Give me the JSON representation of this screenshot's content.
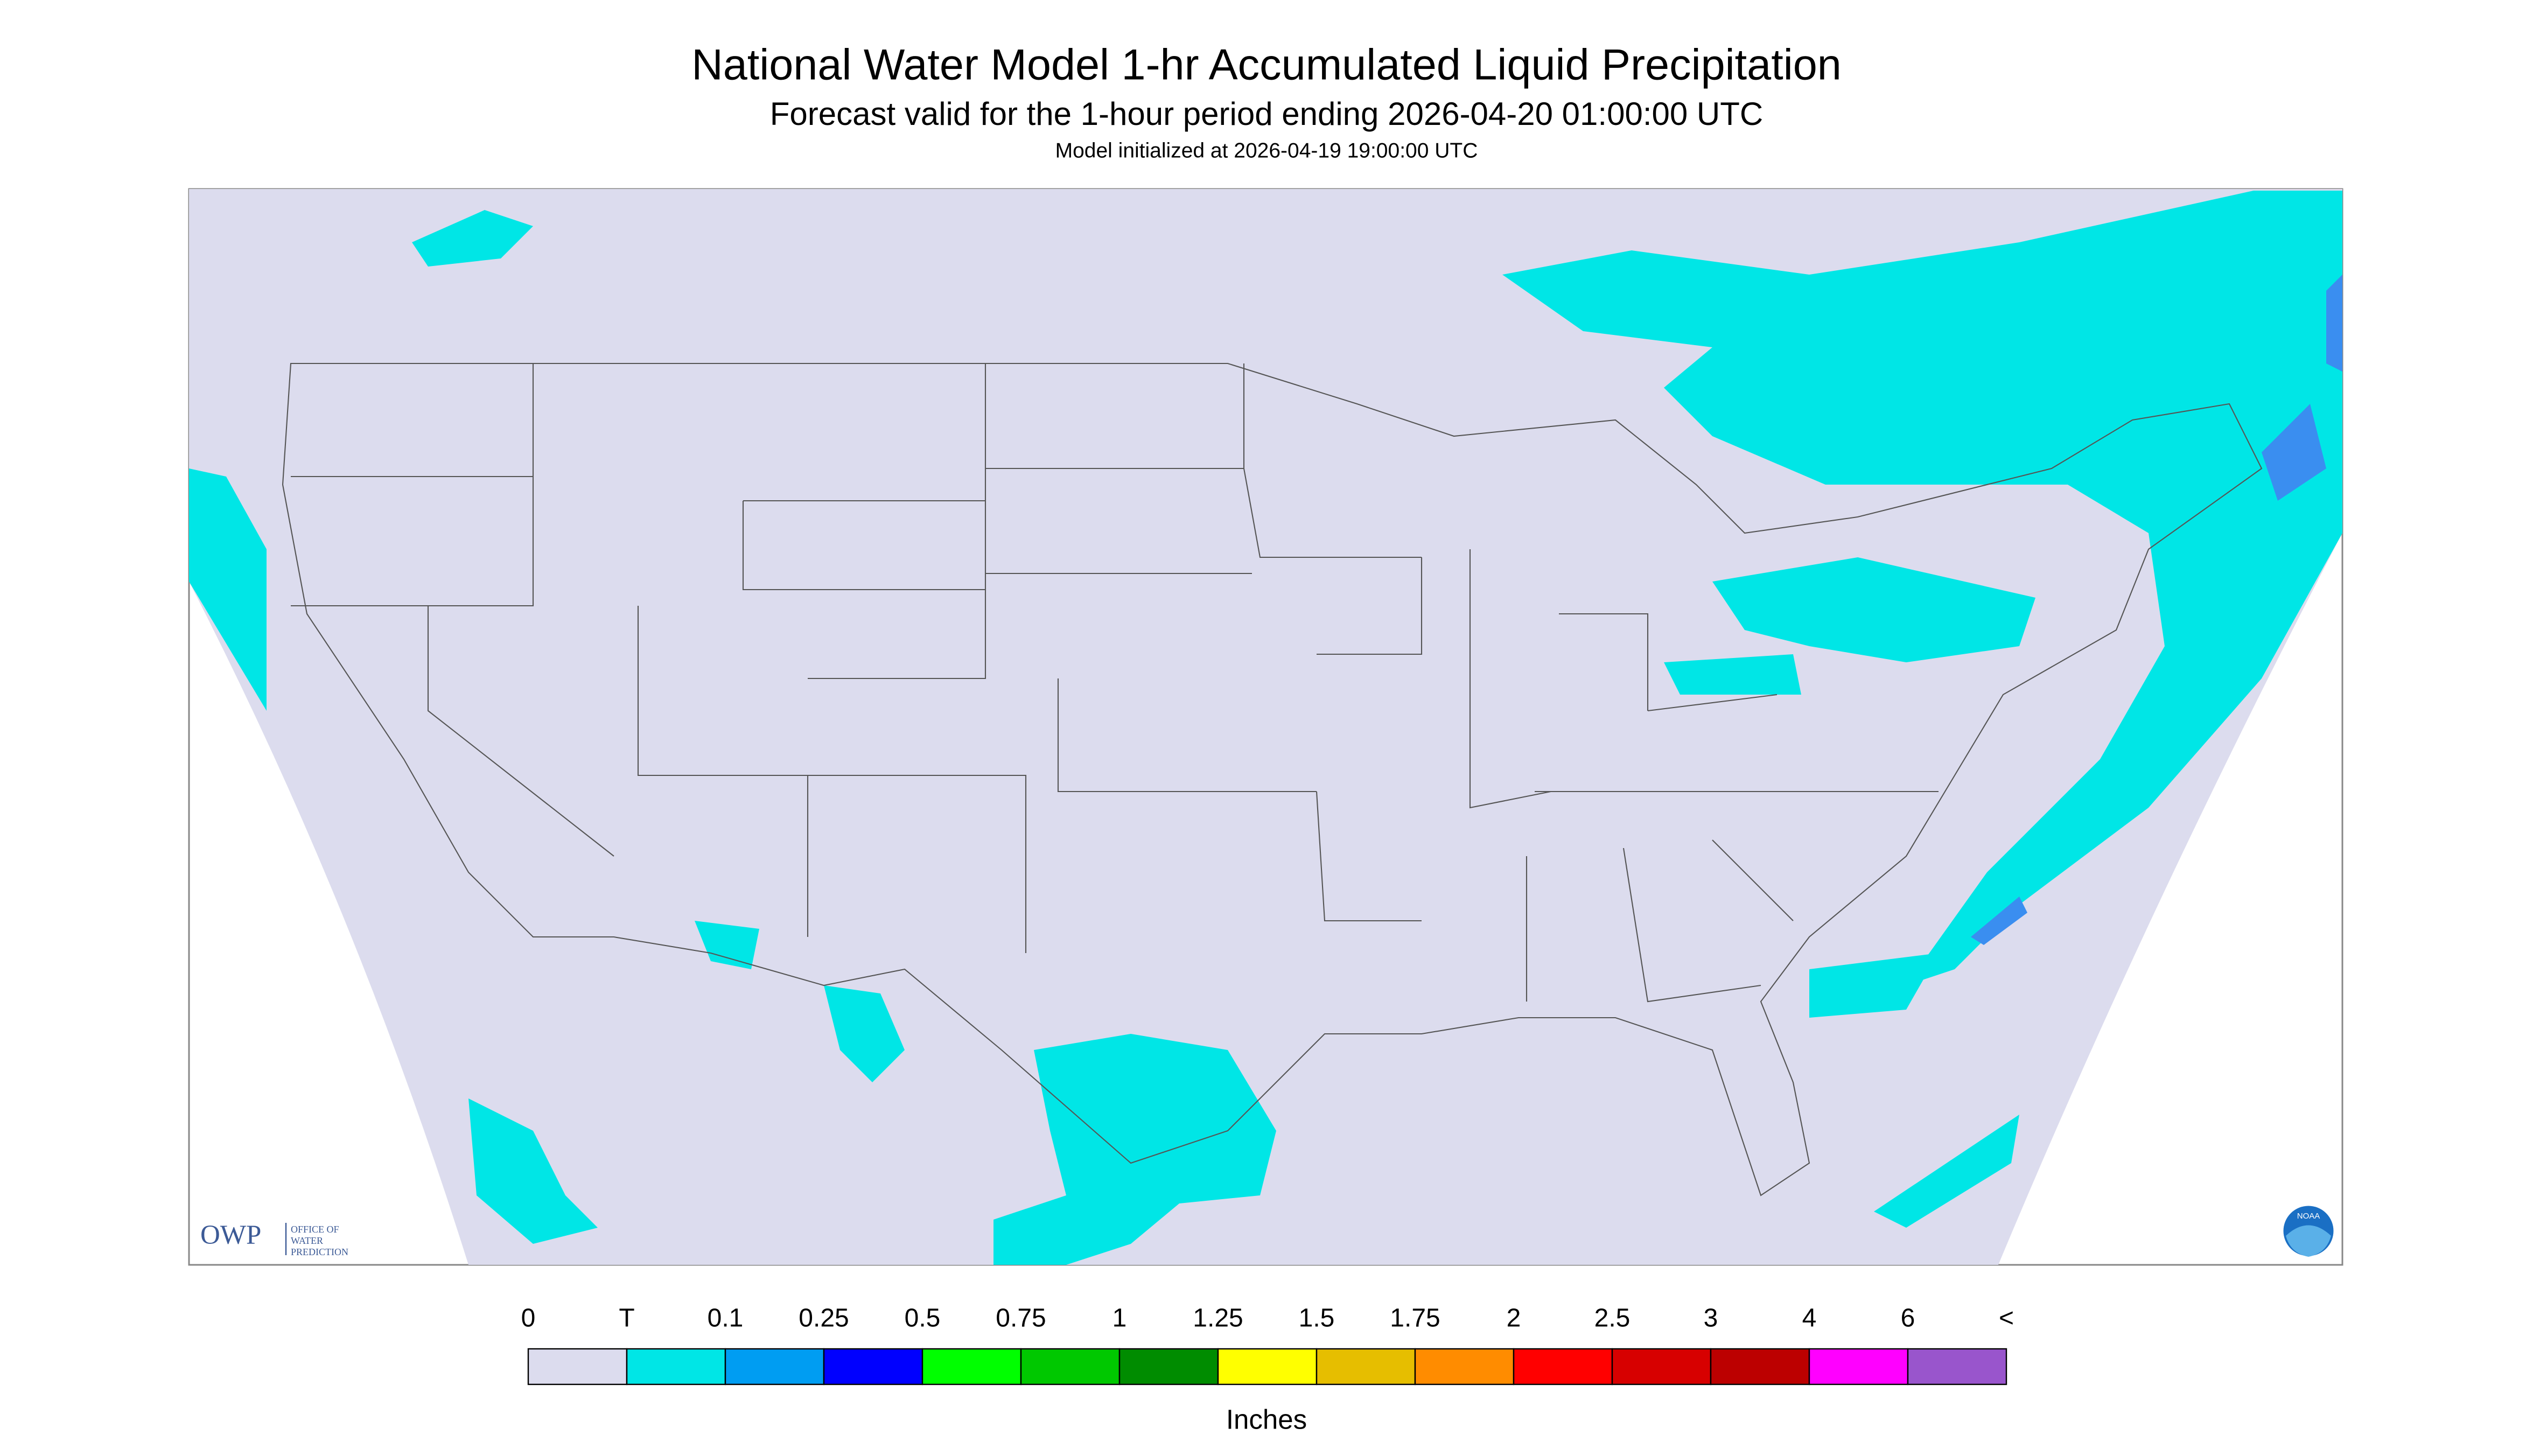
{
  "header": {
    "title": "National Water Model 1-hr Accumulated Liquid Precipitation",
    "subtitle": "Forecast valid for the 1-hour period ending 2026-04-20 01:00:00 UTC",
    "initialized": "Model initialized at 2026-04-19 19:00:00 UTC"
  },
  "map": {
    "background": "#dcdcee",
    "logo_owp": {
      "abbr": "OWP",
      "lines": [
        "OFFICE OF",
        "WATER",
        "PREDICTION"
      ]
    },
    "logo_noaa": "NOAA"
  },
  "legend": {
    "labels": [
      "0",
      "T",
      "0.1",
      "0.25",
      "0.5",
      "0.75",
      "1",
      "1.25",
      "1.5",
      "1.75",
      "2",
      "2.5",
      "3",
      "4",
      "6",
      "<"
    ],
    "colors": [
      "#dcdcee",
      "#00e6e6",
      "#009df2",
      "#0000ff",
      "#00ff00",
      "#00c800",
      "#008c00",
      "#ffff00",
      "#e6be00",
      "#ff8c00",
      "#ff0000",
      "#d70000",
      "#bc0000",
      "#ff00ff",
      "#9955cc"
    ],
    "unit": "Inches"
  }
}
